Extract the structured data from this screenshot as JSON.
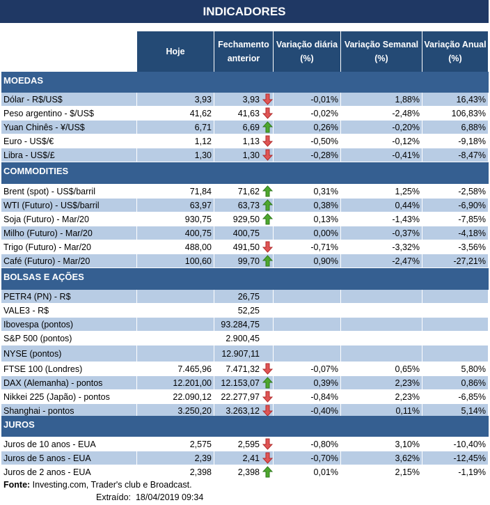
{
  "title": "INDICADORES",
  "headers": [
    "Hoje",
    "Fechamento anterior",
    "Variação diária (%)",
    "Variação Semanal (%)",
    "Variação Anual (%)"
  ],
  "colors": {
    "title_bg": "#1f3864",
    "header_bg": "#244a75",
    "section_bg": "#355f91",
    "row_shade": "#b8cce4",
    "arrow_up": "#4ea72e",
    "arrow_down": "#e05555"
  },
  "sections": [
    {
      "name": "MOEDAS",
      "rows": [
        {
          "label": "Dólar - R$/US$",
          "hoje": "3,93",
          "fech": "3,93",
          "arrow": "down",
          "dia": "-0,01%",
          "sem": "1,88%",
          "ano": "16,43%",
          "shade": true
        },
        {
          "label": "Peso argentino - $/US$",
          "hoje": "41,62",
          "fech": "41,63",
          "arrow": "down",
          "dia": "-0,02%",
          "sem": "-2,48%",
          "ano": "106,83%",
          "shade": false
        },
        {
          "label": "Yuan Chinês - ¥/US$",
          "hoje": "6,71",
          "fech": "6,69",
          "arrow": "up",
          "dia": "0,26%",
          "sem": "-0,20%",
          "ano": "6,88%",
          "shade": true
        },
        {
          "label": "Euro - US$/€",
          "hoje": "1,12",
          "fech": "1,13",
          "arrow": "down",
          "dia": "-0,50%",
          "sem": "-0,12%",
          "ano": "-9,18%",
          "shade": false
        },
        {
          "label": "Libra - US$/£",
          "hoje": "1,30",
          "fech": "1,30",
          "arrow": "down",
          "dia": "-0,28%",
          "sem": "-0,41%",
          "ano": "-8,47%",
          "shade": true
        }
      ]
    },
    {
      "name": "COMMODITIES",
      "rows": [
        {
          "label": "Brent (spot) - US$/barril",
          "hoje": "71,84",
          "fech": "71,62",
          "arrow": "up",
          "dia": "0,31%",
          "sem": "1,25%",
          "ano": "-2,58%",
          "shade": false
        },
        {
          "label": "WTI (Futuro) - US$/barril",
          "hoje": "63,97",
          "fech": "63,73",
          "arrow": "up",
          "dia": "0,38%",
          "sem": "0,44%",
          "ano": "-6,90%",
          "shade": true
        },
        {
          "label": "Soja (Futuro) - Mar/20",
          "hoje": "930,75",
          "fech": "929,50",
          "arrow": "up",
          "dia": "0,13%",
          "sem": "-1,43%",
          "ano": "-7,85%",
          "shade": false
        },
        {
          "label": "Milho (Futuro) - Mar/20",
          "hoje": "400,75",
          "fech": "400,75",
          "arrow": "",
          "dia": "0,00%",
          "sem": "-0,37%",
          "ano": "-4,18%",
          "shade": true
        },
        {
          "label": "Trigo (Futuro) - Mar/20",
          "hoje": "488,00",
          "fech": "491,50",
          "arrow": "down",
          "dia": "-0,71%",
          "sem": "-3,32%",
          "ano": "-3,56%",
          "shade": false
        },
        {
          "label": "Café (Futuro) - Mar/20",
          "hoje": "100,60",
          "fech": "99,70",
          "arrow": "up",
          "dia": "0,90%",
          "sem": "-2,47%",
          "ano": "-27,21%",
          "shade": true
        }
      ]
    },
    {
      "name": "BOLSAS E AÇÕES",
      "rows": [
        {
          "label": "PETR4 (PN) - R$",
          "hoje": "",
          "fech": "26,75",
          "arrow": "",
          "dia": "",
          "sem": "",
          "ano": "",
          "shade": true
        },
        {
          "label": "VALE3 - R$",
          "hoje": "",
          "fech": "52,25",
          "arrow": "",
          "dia": "",
          "sem": "",
          "ano": "",
          "shade": false
        },
        {
          "label": "Ibovespa (pontos)",
          "hoje": "",
          "fech": "93.284,75",
          "arrow": "",
          "dia": "",
          "sem": "",
          "ano": "",
          "shade": true
        },
        {
          "label": "S&P 500 (pontos)",
          "hoje": "",
          "fech": "2.900,45",
          "arrow": "",
          "dia": "",
          "sem": "",
          "ano": "",
          "shade": false
        },
        {
          "label": "NYSE (pontos)",
          "hoje": "",
          "fech": "12.907,11",
          "arrow": "",
          "dia": "",
          "sem": "",
          "ano": "",
          "shade": true
        },
        {
          "label": "FTSE 100 (Londres)",
          "hoje": "7.465,96",
          "fech": "7.471,32",
          "arrow": "down",
          "dia": "-0,07%",
          "sem": "0,65%",
          "ano": "5,80%",
          "shade": false
        },
        {
          "label": "DAX (Alemanha) - pontos",
          "hoje": "12.201,00",
          "fech": "12.153,07",
          "arrow": "up",
          "dia": "0,39%",
          "sem": "2,23%",
          "ano": "0,86%",
          "shade": true
        },
        {
          "label": "Nikkei 225 (Japão) - pontos",
          "hoje": "22.090,12",
          "fech": "22.277,97",
          "arrow": "down",
          "dia": "-0,84%",
          "sem": "2,23%",
          "ano": "-6,85%",
          "shade": false
        },
        {
          "label": "Shanghai - pontos",
          "hoje": "3.250,20",
          "fech": "3.263,12",
          "arrow": "down",
          "dia": "-0,40%",
          "sem": "0,11%",
          "ano": "5,14%",
          "shade": true
        }
      ]
    },
    {
      "name": "JUROS",
      "rows": [
        {
          "label": "Juros de 10 anos - EUA",
          "hoje": "2,575",
          "fech": "2,595",
          "arrow": "down",
          "dia": "-0,80%",
          "sem": "3,10%",
          "ano": "-10,40%",
          "shade": false
        },
        {
          "label": "Juros de 5 anos - EUA",
          "hoje": "2,39",
          "fech": "2,41",
          "arrow": "down",
          "dia": "-0,70%",
          "sem": "3,62%",
          "ano": "-12,45%",
          "shade": true
        },
        {
          "label": "Juros de 2 anos - EUA",
          "hoje": "2,398",
          "fech": "2,398",
          "arrow": "up",
          "dia": "0,01%",
          "sem": "2,15%",
          "ano": "-1,19%",
          "shade": false
        }
      ]
    }
  ],
  "footer": {
    "source_label": "Fonte:",
    "source_text": " Investing.com, Trader's club e Broadcast.",
    "extracted_label": "Extraído:",
    "extracted_value": "18/04/2019 09:34"
  }
}
